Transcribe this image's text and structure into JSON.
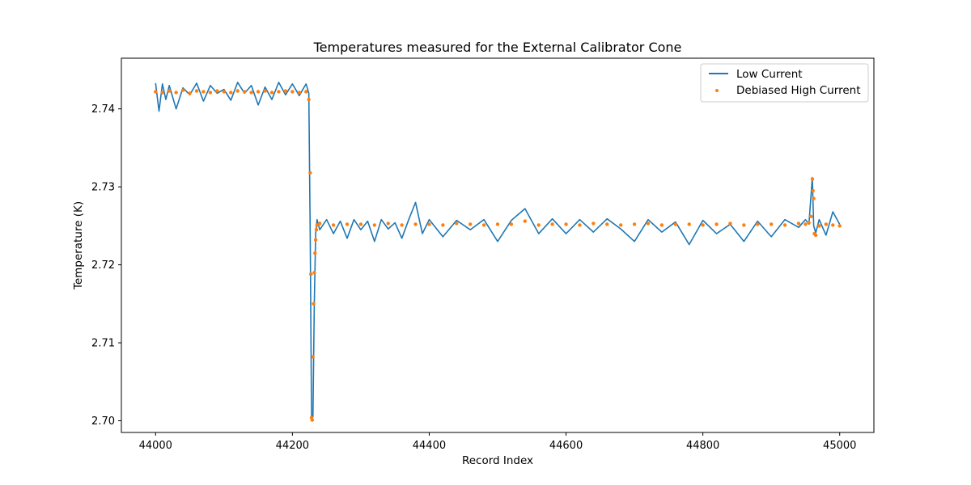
{
  "chart_data": {
    "type": "line",
    "title": "Temperatures measured for the External Calibrator Cone",
    "xlabel": "Record Index",
    "ylabel": "Temperature (K)",
    "xlim": [
      43950,
      45050
    ],
    "ylim": [
      2.6985,
      2.7465
    ],
    "xticks": [
      44000,
      44200,
      44400,
      44600,
      44800,
      45000
    ],
    "yticks": [
      2.7,
      2.71,
      2.72,
      2.73,
      2.74
    ],
    "ytick_labels": [
      "2.70",
      "2.71",
      "2.72",
      "2.73",
      "2.74"
    ],
    "grid": false,
    "legend_position": "top-right",
    "colors": {
      "low": "#1f77b4",
      "high": "#ff7f0e"
    },
    "series": [
      {
        "name": "Low Current",
        "style": "line",
        "x": [
          44000,
          44005,
          44010,
          44015,
          44020,
          44030,
          44040,
          44050,
          44060,
          44070,
          44080,
          44090,
          44100,
          44110,
          44120,
          44130,
          44140,
          44150,
          44160,
          44170,
          44180,
          44190,
          44200,
          44210,
          44220,
          44224,
          44226,
          44228,
          44230,
          44232,
          44234,
          44236,
          44240,
          44250,
          44260,
          44270,
          44280,
          44290,
          44300,
          44310,
          44320,
          44330,
          44340,
          44350,
          44360,
          44370,
          44380,
          44390,
          44400,
          44420,
          44440,
          44460,
          44480,
          44500,
          44520,
          44540,
          44560,
          44580,
          44600,
          44620,
          44640,
          44660,
          44680,
          44700,
          44720,
          44740,
          44760,
          44780,
          44800,
          44820,
          44840,
          44860,
          44880,
          44900,
          44920,
          44940,
          44950,
          44955,
          44960,
          44962,
          44965,
          44970,
          44980,
          44990,
          45000
        ],
        "y": [
          2.7433,
          2.7397,
          2.7432,
          2.7412,
          2.743,
          2.74,
          2.7427,
          2.7418,
          2.7433,
          2.741,
          2.743,
          2.742,
          2.7425,
          2.7411,
          2.7434,
          2.742,
          2.743,
          2.7405,
          2.7428,
          2.7412,
          2.7434,
          2.7418,
          2.7432,
          2.7417,
          2.7432,
          2.742,
          2.724,
          2.7003,
          2.7005,
          2.715,
          2.724,
          2.7258,
          2.7245,
          2.7258,
          2.724,
          2.7256,
          2.7234,
          2.7258,
          2.7245,
          2.7256,
          2.723,
          2.7258,
          2.7246,
          2.7254,
          2.7234,
          2.7258,
          2.728,
          2.724,
          2.7258,
          2.7236,
          2.7257,
          2.7245,
          2.7258,
          2.723,
          2.7257,
          2.7272,
          2.724,
          2.7259,
          2.724,
          2.7258,
          2.7242,
          2.7259,
          2.7246,
          2.723,
          2.7258,
          2.7242,
          2.7255,
          2.7226,
          2.7257,
          2.724,
          2.7252,
          2.723,
          2.7256,
          2.7236,
          2.7258,
          2.7248,
          2.7258,
          2.7252,
          2.7312,
          2.725,
          2.7241,
          2.7258,
          2.7238,
          2.7268,
          2.7252
        ]
      },
      {
        "name": "Debiased High Current",
        "style": "scatter",
        "x": [
          44000,
          44010,
          44020,
          44030,
          44040,
          44050,
          44060,
          44070,
          44080,
          44090,
          44100,
          44110,
          44120,
          44130,
          44140,
          44150,
          44160,
          44170,
          44180,
          44190,
          44200,
          44210,
          44220,
          44224,
          44226,
          44227,
          44228,
          44229,
          44230,
          44231,
          44232,
          44233,
          44234,
          44235,
          44236,
          44240,
          44260,
          44280,
          44300,
          44320,
          44340,
          44360,
          44380,
          44400,
          44420,
          44440,
          44460,
          44480,
          44500,
          44520,
          44540,
          44560,
          44580,
          44600,
          44620,
          44640,
          44660,
          44680,
          44700,
          44720,
          44740,
          44760,
          44780,
          44800,
          44820,
          44840,
          44860,
          44880,
          44900,
          44920,
          44940,
          44950,
          44955,
          44958,
          44960,
          44961,
          44962,
          44963,
          44965,
          44970,
          44980,
          44990,
          45000
        ],
        "y": [
          2.7422,
          2.7421,
          2.7423,
          2.7421,
          2.7424,
          2.742,
          2.7423,
          2.7422,
          2.7421,
          2.7423,
          2.7422,
          2.7421,
          2.7423,
          2.7422,
          2.7421,
          2.7422,
          2.7423,
          2.7421,
          2.7422,
          2.7423,
          2.7422,
          2.7421,
          2.7422,
          2.7412,
          2.7318,
          2.7188,
          2.7004,
          2.7001,
          2.7082,
          2.715,
          2.719,
          2.7215,
          2.7232,
          2.7245,
          2.7251,
          2.7253,
          2.7251,
          2.7252,
          2.7252,
          2.7251,
          2.7253,
          2.7251,
          2.7252,
          2.7252,
          2.7251,
          2.7253,
          2.7252,
          2.7251,
          2.7252,
          2.7252,
          2.7256,
          2.7251,
          2.7252,
          2.7252,
          2.7251,
          2.7253,
          2.7252,
          2.7251,
          2.7252,
          2.7253,
          2.7251,
          2.7252,
          2.7252,
          2.7251,
          2.7252,
          2.7253,
          2.7251,
          2.7252,
          2.7252,
          2.7251,
          2.7253,
          2.7252,
          2.7254,
          2.7262,
          2.731,
          2.7295,
          2.7285,
          2.724,
          2.7238,
          2.725,
          2.7252,
          2.7251,
          2.725
        ]
      }
    ]
  }
}
